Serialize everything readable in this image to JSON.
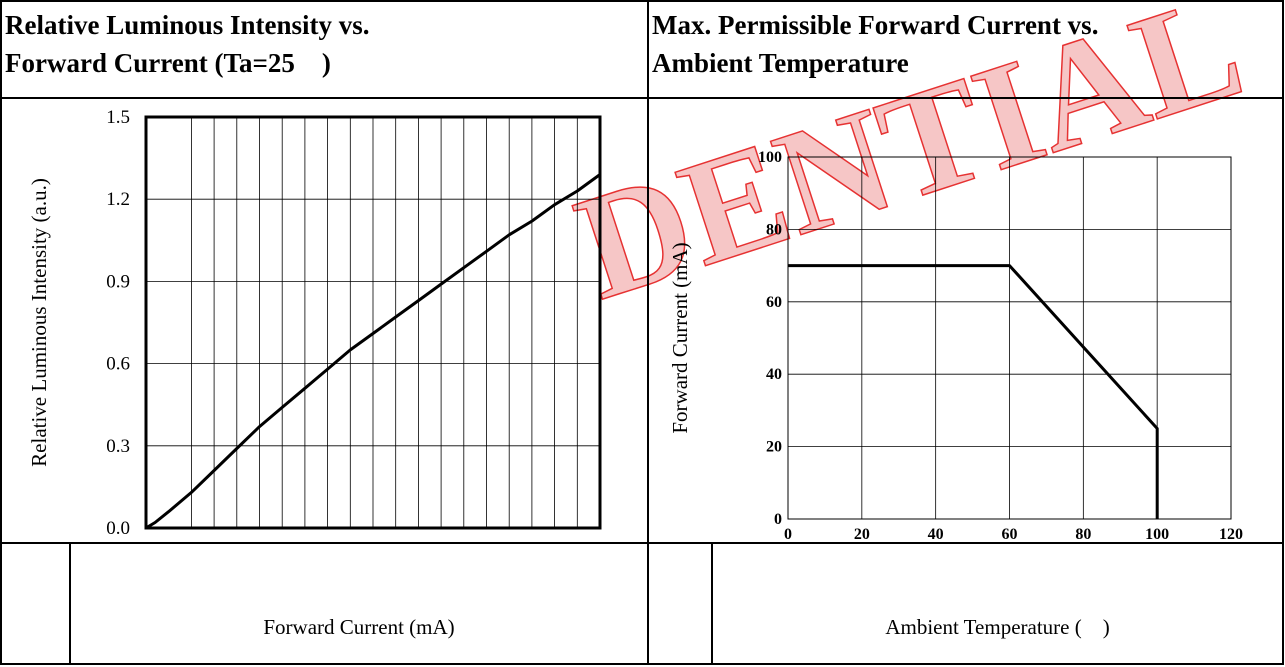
{
  "left_panel": {
    "title_line1": "Relative Luminous Intensity vs.",
    "title_line2": "Forward Current (Ta=25 )",
    "xlabel": "Forward Current (mA)"
  },
  "right_panel": {
    "title_line1": "Max. Permissible Forward Current vs.",
    "title_line2": "Ambient Temperature",
    "xlabel": "Ambient Temperature ( )"
  },
  "chart_data": [
    {
      "type": "line",
      "title": "Relative Luminous Intensity vs. Forward Current (Ta=25 )",
      "xlabel": "Forward Current (mA)",
      "ylabel": "Relative Luminous Intensity (a.u.)",
      "xlim": [
        0,
        100
      ],
      "ylim": [
        0,
        1.5
      ],
      "xticks": [
        0,
        10,
        20,
        30,
        40,
        50,
        60,
        70,
        80,
        90,
        100
      ],
      "yticks": [
        0.0,
        0.3,
        0.6,
        0.9,
        1.2,
        1.5
      ],
      "ytick_labels": [
        "0.0",
        "0.3",
        "0.6",
        "0.9",
        "1.2",
        "1.5"
      ],
      "grid": true,
      "series": [
        {
          "x": [
            0,
            2,
            5,
            10,
            15,
            20,
            25,
            30,
            35,
            40,
            45,
            50,
            55,
            60,
            65,
            70,
            75,
            80,
            85,
            90,
            95,
            100
          ],
          "y": [
            0,
            0.02,
            0.06,
            0.13,
            0.21,
            0.29,
            0.37,
            0.44,
            0.51,
            0.58,
            0.65,
            0.71,
            0.77,
            0.83,
            0.89,
            0.95,
            1.01,
            1.07,
            1.12,
            1.18,
            1.23,
            1.29
          ]
        }
      ]
    },
    {
      "type": "line",
      "title": "Max. Permissible Forward Current vs. Ambient Temperature",
      "xlabel": "Ambient Temperature ( )",
      "ylabel": "Forward Current (mA)",
      "xlim": [
        0,
        120
      ],
      "ylim": [
        0,
        100
      ],
      "xticks": [
        0,
        20,
        40,
        60,
        80,
        100,
        120
      ],
      "yticks": [
        0,
        20,
        40,
        60,
        80,
        100
      ],
      "ytick_labels": [
        "0",
        "20",
        "40",
        "60",
        "80",
        "100"
      ],
      "grid": true,
      "series": [
        {
          "x": [
            0,
            60,
            100,
            100
          ],
          "y": [
            70,
            70,
            25,
            0
          ]
        }
      ]
    }
  ]
}
